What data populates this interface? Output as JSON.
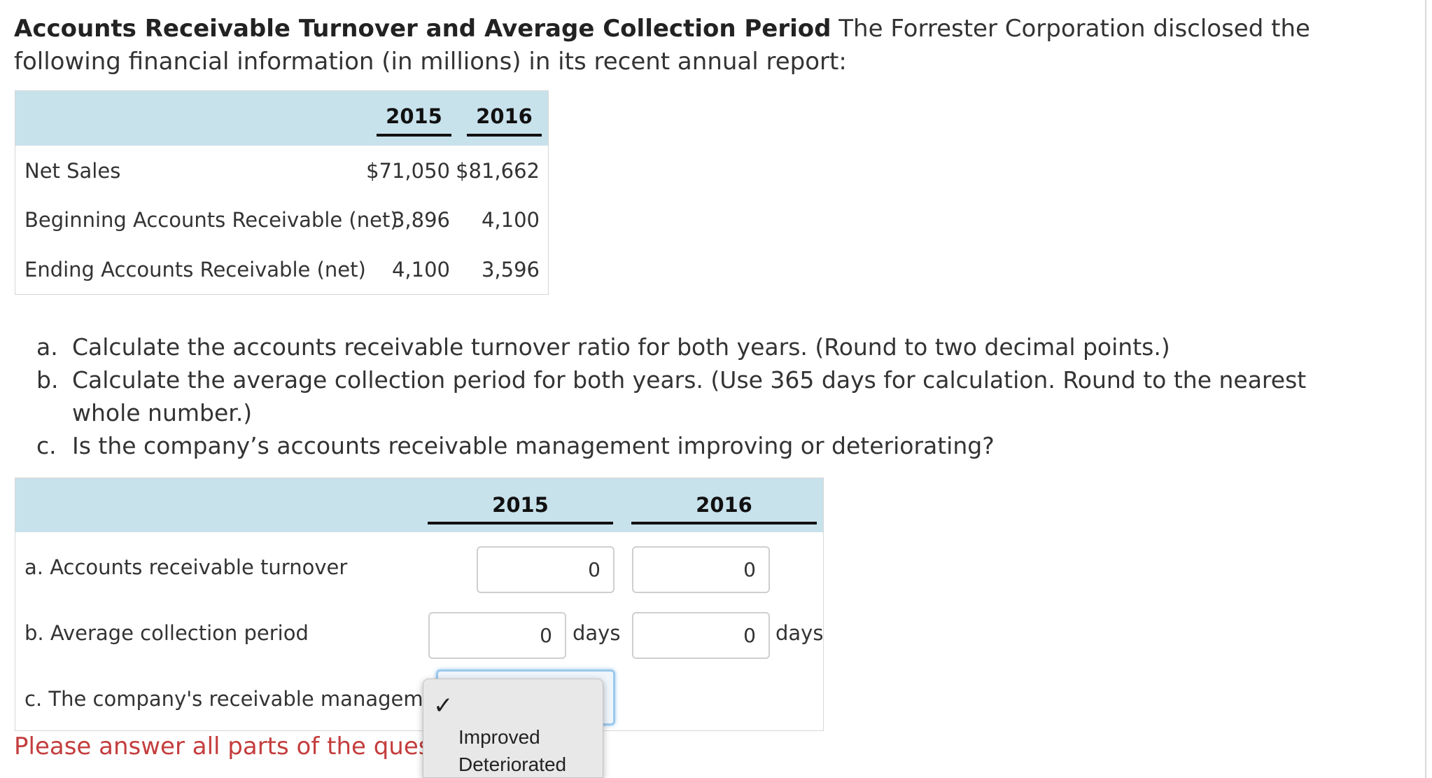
{
  "intro": {
    "title": "Accounts Receivable Turnover and Average Collection Period",
    "text": " The Forrester Corporation disclosed the following financial information (in millions) in its recent annual report:"
  },
  "data_table": {
    "years": [
      "2015",
      "2016"
    ],
    "rows": [
      {
        "label": "Net Sales",
        "v2015": "$71,050",
        "v2016": "$81,662"
      },
      {
        "label": "Beginning Accounts Receivable (net)",
        "v2015": "3,896",
        "v2016": "4,100"
      },
      {
        "label": "Ending Accounts Receivable (net)",
        "v2015": "4,100",
        "v2016": "3,596"
      }
    ]
  },
  "questions": [
    {
      "letter": "a.",
      "text": "Calculate the accounts receivable turnover ratio for both years. (Round to two decimal points.)"
    },
    {
      "letter": "b.",
      "text": "Calculate the average collection period for both years. (Use 365 days for calculation. Round to the nearest whole number.)"
    },
    {
      "letter": "c.",
      "text": "Is the company’s accounts receivable management improving or deteriorating?"
    }
  ],
  "answer_table": {
    "years": [
      "2015",
      "2016"
    ],
    "rows": {
      "turnover": {
        "label": "a. Accounts receivable turnover",
        "v2015": "0",
        "v2016": "0"
      },
      "collection": {
        "label": "b. Average collection period",
        "v2015": "0",
        "v2016": "0",
        "unit": "days"
      },
      "management": {
        "label": "c. The company's receivable management"
      }
    }
  },
  "dropdown": {
    "selected_mark": "✓",
    "options": [
      "Improved",
      "Deteriorated"
    ]
  },
  "error": "Please answer all parts of the question"
}
